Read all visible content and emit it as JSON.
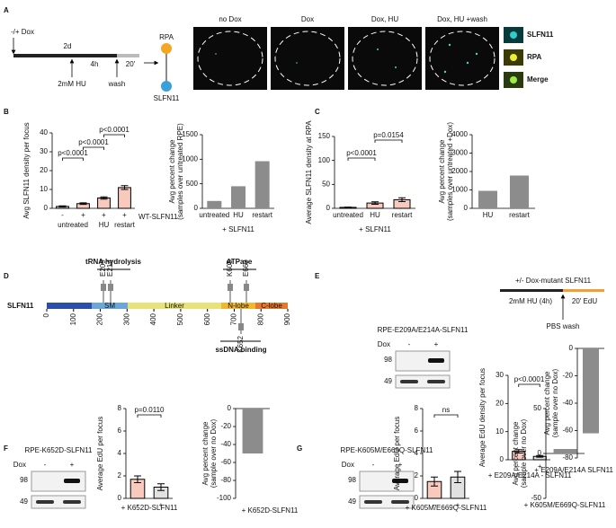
{
  "panel_labels": [
    "A",
    "B",
    "C",
    "D",
    "E",
    "F",
    "G"
  ],
  "panel_a": {
    "dox": "-/+ Dox",
    "duration": "2d",
    "hu_time": "4h",
    "wash_time": "20'",
    "hu": "2mM HU",
    "wash": "wash",
    "rpa": "RPA",
    "slfn11": "SLFN11",
    "conditions": [
      "no Dox",
      "Dox",
      "Dox, HU",
      "Dox, HU +wash"
    ],
    "insets": [
      "SLFN11",
      "RPA",
      "Merge"
    ]
  },
  "panel_d": {
    "protein": "SLFN11",
    "trna": "tRNA hydrolysis",
    "atpase": "ATPase",
    "ssdna": "ssDNA binding",
    "mutations": [
      "E209",
      "E214",
      "K605",
      "E669",
      "K652"
    ],
    "domains": [
      "SM",
      "Linker",
      "N-lobe",
      "C-lobe"
    ],
    "ruler": [
      0,
      100,
      200,
      300,
      400,
      500,
      600,
      700,
      800,
      900
    ]
  },
  "panel_e": {
    "schematic": {
      "top": "+/- Dox-mutant SLFN11",
      "hu": "2mM HU (4h)",
      "edu": "20' EdU",
      "wash": "PBS wash"
    },
    "blot": {
      "title": "RPE-E209A/E214A-SLFN11",
      "dox": "Dox",
      "lanes": [
        "-",
        "+"
      ],
      "markers": [
        98,
        49
      ]
    }
  },
  "panel_f": {
    "blot": {
      "title": "RPE-K652D-SLFN11",
      "dox": "Dox",
      "lanes": [
        "-",
        "+"
      ],
      "markers": [
        98,
        49
      ]
    }
  },
  "panel_g": {
    "blot": {
      "title": "RPE-K605M/E669Q-SLFN11",
      "dox": "Dox",
      "lanes": [
        "-",
        "+"
      ],
      "markers": [
        98,
        49
      ]
    }
  },
  "chart_data": [
    {
      "type": "bar",
      "ylabel": [
        "Avg SLFN11 density per focus"
      ],
      "categories": [
        "-",
        "+",
        "+",
        "+"
      ],
      "groups": [
        "untreated",
        "HU",
        "restart"
      ],
      "note": "WT-SLFN11",
      "values": [
        1,
        2.5,
        5.5,
        11
      ],
      "errors": [
        0.3,
        0.4,
        0.6,
        1
      ],
      "colors": [
        "#bdbdbd",
        "#f08a6e",
        "#f08a6e",
        "#f08a6e"
      ],
      "ylim": [
        0,
        40
      ],
      "yticks": [
        0,
        10,
        20,
        30,
        40
      ],
      "annotations": [
        "p<0.0001",
        "p<0.0001",
        "p<0.0001"
      ]
    },
    {
      "type": "bar",
      "ylabel": [
        "Avg percent change",
        "(samples over untreated RPE)"
      ],
      "categories": [
        "untreated",
        "HU",
        "restart"
      ],
      "note": "+ SLFN11",
      "values": [
        150,
        450,
        960
      ],
      "color": "#8c8c8c",
      "ylim": [
        0,
        1500
      ],
      "yticks": [
        0,
        500,
        1000,
        1500
      ]
    },
    {
      "type": "bar",
      "ylabel": [
        "Average SLFN11 density at RPA"
      ],
      "categories": [
        "untreated",
        "HU",
        "restart"
      ],
      "note": "+ SLFN11",
      "values": [
        2,
        11,
        18
      ],
      "errors": [
        0.5,
        2.5,
        4
      ],
      "colors": [
        "#f08a6e",
        "#f08a6e",
        "#f08a6e"
      ],
      "ylim": [
        0,
        150
      ],
      "yticks": [
        0,
        50,
        100,
        150
      ],
      "annotations": [
        "p<0.0001",
        "p=0.0154"
      ]
    },
    {
      "type": "bar",
      "ylabel": [
        "Avg percent change",
        "(samples over untreated +Dox)"
      ],
      "categories": [
        "HU",
        "restart"
      ],
      "values": [
        950,
        1780
      ],
      "color": "#8c8c8c",
      "ylim": [
        0,
        4000
      ],
      "yticks": [
        0,
        1000,
        2000,
        3000,
        4000
      ]
    },
    {
      "type": "bar",
      "ylabel": [
        "Average EdU density per focus"
      ],
      "categories": [
        "-",
        "+"
      ],
      "note": "+ E209A/E214A - SLFN11",
      "values": [
        3,
        1.2
      ],
      "errors": [
        0.6,
        0.3
      ],
      "colors": [
        "#f08a6e",
        "#bdbdbd"
      ],
      "ylim": [
        0,
        30
      ],
      "yticks": [
        0,
        10,
        20,
        30
      ],
      "annotations": [
        "p<0.0001"
      ]
    },
    {
      "type": "bar",
      "ylabel": [
        "Avg percent change",
        "(sample over no Dox)"
      ],
      "categories": [
        "+ E209A/E214A SLFN11"
      ],
      "values": [
        -62
      ],
      "color": "#8c8c8c",
      "ylim": [
        -80,
        0
      ],
      "yticks": [
        0,
        -20,
        -40,
        -60,
        -80
      ]
    },
    {
      "type": "bar",
      "ylabel": [
        "Average EdU per focus"
      ],
      "categories": [
        "-",
        "+"
      ],
      "note": "+ K652D-SLFN11",
      "values": [
        1.7,
        1
      ],
      "errors": [
        0.3,
        0.3
      ],
      "colors": [
        "#f08a6e",
        "#bdbdbd"
      ],
      "ylim": [
        0,
        8
      ],
      "yticks": [
        0,
        2,
        4,
        6,
        8
      ],
      "annotations": [
        "p=0.0110"
      ]
    },
    {
      "type": "bar",
      "ylabel": [
        "Avg percent change",
        "(sample over no Dox)"
      ],
      "categories": [
        "+ K652D-SLFN11"
      ],
      "values": [
        -50
      ],
      "color": "#8c8c8c",
      "ylim": [
        -100,
        0
      ],
      "yticks": [
        0,
        -20,
        -40,
        -60,
        -80,
        -100
      ]
    },
    {
      "type": "bar",
      "ylabel": [
        "Average EdU per focus"
      ],
      "categories": [
        "-",
        "+"
      ],
      "note": "+ K605M/E669Q-SLFN11",
      "values": [
        1.5,
        1.9
      ],
      "errors": [
        0.4,
        0.5
      ],
      "colors": [
        "#f08a6e",
        "#bdbdbd"
      ],
      "ylim": [
        0,
        8
      ],
      "yticks": [
        0,
        2,
        4,
        6,
        8
      ],
      "annotations": [
        "ns"
      ]
    },
    {
      "type": "bar",
      "ylabel": [
        "Avg percent change",
        "(sample over no Dox)"
      ],
      "categories": [
        "+ K605M/E669Q-SLFN11"
      ],
      "values": [
        5
      ],
      "color": "#8c8c8c",
      "ylim": [
        -50,
        50
      ],
      "yticks": [
        50,
        0,
        -50
      ]
    }
  ]
}
